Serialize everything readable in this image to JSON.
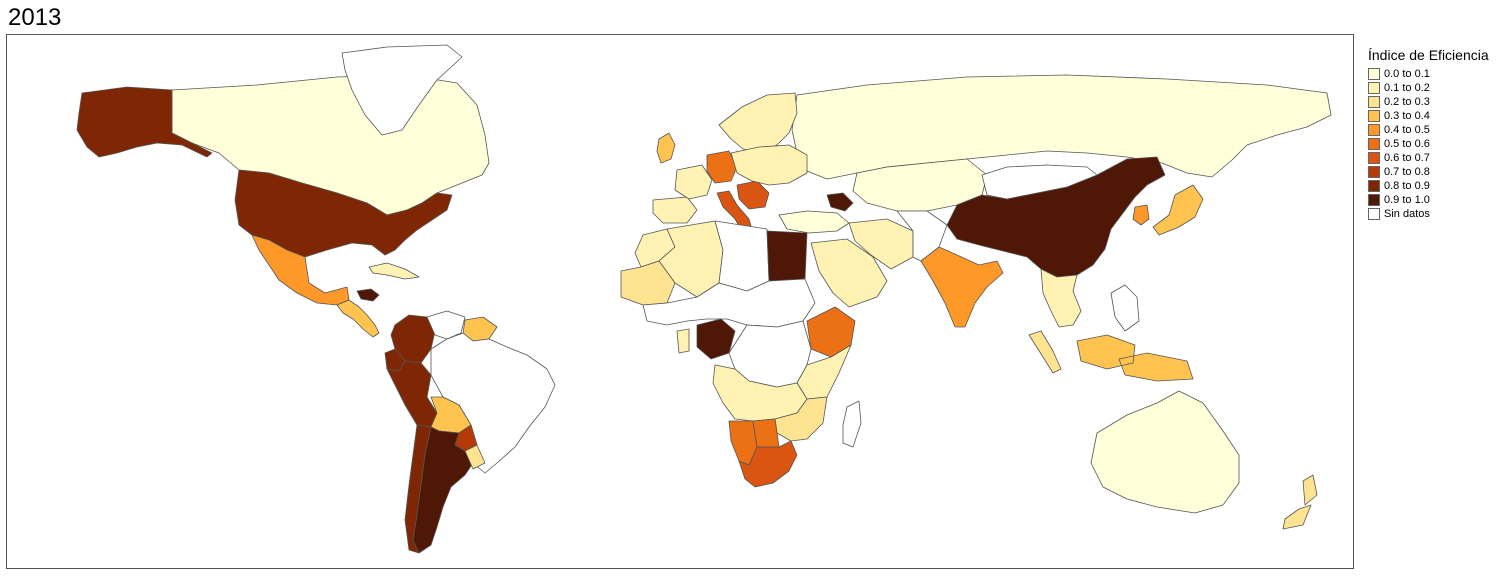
{
  "title": "2013",
  "legend": {
    "title": "Índice de Eficiencia",
    "items": [
      {
        "label": "0.0 to 0.1",
        "color": "#ffffd9"
      },
      {
        "label": "0.1 to 0.2",
        "color": "#fff2b2"
      },
      {
        "label": "0.2 to 0.3",
        "color": "#fee391"
      },
      {
        "label": "0.3 to 0.4",
        "color": "#fec44f"
      },
      {
        "label": "0.4 to 0.5",
        "color": "#fe9929"
      },
      {
        "label": "0.5 to 0.6",
        "color": "#ec7014"
      },
      {
        "label": "0.6 to 0.7",
        "color": "#d95511"
      },
      {
        "label": "0.7 to 0.8",
        "color": "#b53a07"
      },
      {
        "label": "0.8 to 0.9",
        "color": "#7f2704"
      },
      {
        "label": "0.9 to 1.0",
        "color": "#4e1706"
      },
      {
        "label": "Sin datos",
        "color": "#ffffff"
      }
    ]
  },
  "map": {
    "countries": [
      {
        "id": "canada",
        "bin": 0
      },
      {
        "id": "alaska",
        "bin": 8
      },
      {
        "id": "greenland",
        "bin": 10
      },
      {
        "id": "usa",
        "bin": 8
      },
      {
        "id": "mexico",
        "bin": 4
      },
      {
        "id": "central-america",
        "bin": 3
      },
      {
        "id": "honduras",
        "bin": 9
      },
      {
        "id": "cuba",
        "bin": 1
      },
      {
        "id": "colombia",
        "bin": 8
      },
      {
        "id": "venezuela",
        "bin": 10
      },
      {
        "id": "guianas",
        "bin": 3
      },
      {
        "id": "ecuador",
        "bin": 8
      },
      {
        "id": "peru",
        "bin": 8
      },
      {
        "id": "brazil",
        "bin": 10
      },
      {
        "id": "bolivia",
        "bin": 3
      },
      {
        "id": "paraguay",
        "bin": 7
      },
      {
        "id": "chile",
        "bin": 8
      },
      {
        "id": "argentina",
        "bin": 9
      },
      {
        "id": "uruguay",
        "bin": 2
      },
      {
        "id": "russia",
        "bin": 0
      },
      {
        "id": "scandinavia",
        "bin": 1
      },
      {
        "id": "uk",
        "bin": 3
      },
      {
        "id": "spain",
        "bin": 1
      },
      {
        "id": "france",
        "bin": 1
      },
      {
        "id": "germany",
        "bin": 5
      },
      {
        "id": "italy",
        "bin": 6
      },
      {
        "id": "balkans",
        "bin": 6
      },
      {
        "id": "eastern-europe",
        "bin": 1
      },
      {
        "id": "turkey",
        "bin": 0
      },
      {
        "id": "caucasus",
        "bin": 9
      },
      {
        "id": "morocco",
        "bin": 1
      },
      {
        "id": "algeria",
        "bin": 1
      },
      {
        "id": "western-sahara-mauritania",
        "bin": 2
      },
      {
        "id": "libya",
        "bin": 10
      },
      {
        "id": "egypt",
        "bin": 9
      },
      {
        "id": "sahel",
        "bin": 10
      },
      {
        "id": "nigeria",
        "bin": 9
      },
      {
        "id": "ghana",
        "bin": 1
      },
      {
        "id": "ethiopia",
        "bin": 5
      },
      {
        "id": "central-africa",
        "bin": 10
      },
      {
        "id": "east-africa",
        "bin": 1
      },
      {
        "id": "angola-zambia",
        "bin": 1
      },
      {
        "id": "mozambique-zimbabwe",
        "bin": 2
      },
      {
        "id": "namibia",
        "bin": 5
      },
      {
        "id": "botswana",
        "bin": 5
      },
      {
        "id": "south-africa",
        "bin": 6
      },
      {
        "id": "madagascar",
        "bin": 10
      },
      {
        "id": "arabia",
        "bin": 1
      },
      {
        "id": "iran",
        "bin": 1
      },
      {
        "id": "central-asia",
        "bin": 0
      },
      {
        "id": "afghanistan-pakistan",
        "bin": 10
      },
      {
        "id": "india",
        "bin": 4
      },
      {
        "id": "china",
        "bin": 9
      },
      {
        "id": "mongolia",
        "bin": 10
      },
      {
        "id": "korea",
        "bin": 4
      },
      {
        "id": "japan",
        "bin": 3
      },
      {
        "id": "southeast-asia",
        "bin": 1
      },
      {
        "id": "malaysia",
        "bin": 2
      },
      {
        "id": "indonesia",
        "bin": 3
      },
      {
        "id": "philippines",
        "bin": 10
      },
      {
        "id": "australia",
        "bin": 0
      },
      {
        "id": "new-zealand",
        "bin": 2
      }
    ]
  }
}
